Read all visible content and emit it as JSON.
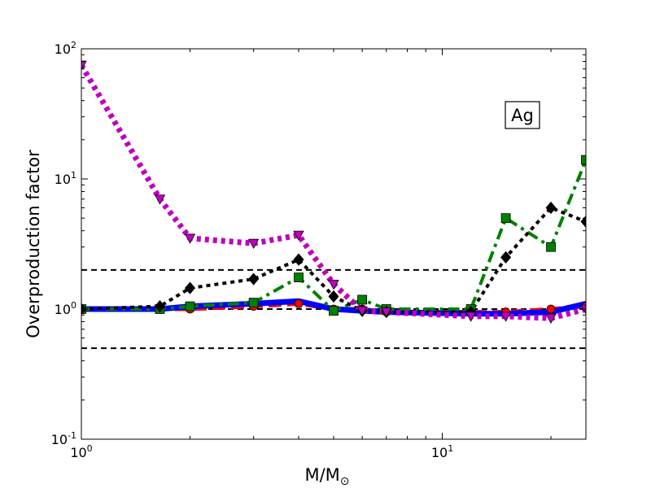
{
  "chart_data": {
    "type": "line",
    "title": "",
    "xlabel": "M/M",
    "xlabel_sub": "⊙",
    "ylabel": "Overproduction factor",
    "xscale": "log",
    "yscale": "log",
    "xlim": [
      1,
      25
    ],
    "ylim": [
      0.1,
      100
    ],
    "x_ticks": [
      {
        "base": "10",
        "exp": "0",
        "value": 1
      },
      {
        "base": "10",
        "exp": "1",
        "value": 10
      }
    ],
    "y_ticks": [
      {
        "base": "10",
        "exp": "-1",
        "value": 0.1
      },
      {
        "base": "10",
        "exp": "0",
        "value": 1
      },
      {
        "base": "10",
        "exp": "1",
        "value": 10
      },
      {
        "base": "10",
        "exp": "2",
        "value": 100
      }
    ],
    "annotation": "Ag",
    "reference_lines": [
      {
        "y": 2.0,
        "color": "#000000",
        "style": "dashed"
      },
      {
        "y": 1.0,
        "color": "#000000",
        "style": "dashed"
      },
      {
        "y": 0.5,
        "color": "#000000",
        "style": "dashed"
      }
    ],
    "series": [
      {
        "color": "#ff0000",
        "linestyle": "dashed",
        "marker": "circle",
        "x": [
          1,
          1.65,
          2,
          3,
          4,
          5,
          6,
          7,
          12,
          15,
          20,
          25
        ],
        "y": [
          1.0,
          1.0,
          1.0,
          1.05,
          1.1,
          1.0,
          1.0,
          0.95,
          0.95,
          0.95,
          1.0,
          1.05
        ]
      },
      {
        "color": "#0000ff",
        "linestyle": "solid",
        "marker": "none",
        "x": [
          1,
          1.65,
          2,
          3,
          4,
          5,
          6,
          7,
          12,
          15,
          20,
          25
        ],
        "y": [
          1.0,
          1.0,
          1.05,
          1.1,
          1.15,
          1.0,
          0.97,
          0.95,
          0.92,
          0.92,
          0.95,
          1.1
        ]
      },
      {
        "color": "#008000",
        "linestyle": "dashdot",
        "marker": "square",
        "x": [
          1,
          1.65,
          2,
          3,
          4,
          5,
          6,
          7,
          12,
          15,
          20,
          25
        ],
        "y": [
          1.0,
          1.0,
          1.05,
          1.12,
          1.75,
          0.97,
          1.18,
          1.0,
          1.0,
          5.0,
          3.0,
          14.0
        ]
      },
      {
        "color": "#000000",
        "linestyle": "dotted",
        "marker": "diamond",
        "x": [
          1,
          1.65,
          2,
          3,
          4,
          5,
          6,
          7,
          12,
          15,
          20,
          25
        ],
        "y": [
          1.0,
          1.05,
          1.45,
          1.7,
          2.4,
          1.25,
          0.97,
          0.95,
          0.95,
          2.5,
          6.0,
          4.7
        ]
      },
      {
        "color": "#bf00bf",
        "linestyle": "dotted",
        "marker": "triangle-down",
        "x": [
          1,
          1.65,
          2,
          3,
          4,
          5,
          6,
          7,
          12,
          15,
          20,
          25
        ],
        "y": [
          75,
          7.0,
          3.5,
          3.2,
          3.7,
          1.55,
          0.97,
          0.95,
          0.88,
          0.88,
          0.85,
          1.0
        ]
      }
    ]
  }
}
